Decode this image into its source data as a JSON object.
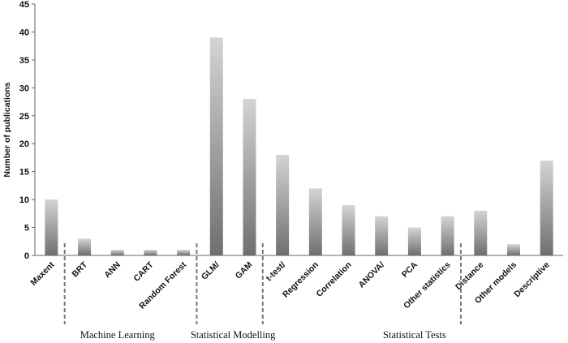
{
  "chart_data": {
    "type": "bar",
    "categories": [
      "Maxent",
      "BRT",
      "ANN",
      "CART",
      "Random Forest",
      "GLM/",
      "GAM",
      "t-test/",
      "Regression",
      "Correlation",
      "ANOVA/",
      "PCA",
      "Other statistics",
      "Distance",
      "Other models",
      "Descriptive"
    ],
    "values": [
      10,
      3,
      1,
      1,
      1,
      39,
      28,
      18,
      12,
      9,
      7,
      5,
      7,
      8,
      2,
      17
    ],
    "ylabel": "Number of publications",
    "xlabel": "",
    "ylim": [
      0,
      45
    ],
    "yticks": [
      0,
      5,
      10,
      15,
      20,
      25,
      30,
      35,
      40,
      45
    ],
    "grid": false,
    "legend": "none",
    "groups": [
      {
        "label": "Machine Learning",
        "start": 0,
        "end": 4
      },
      {
        "label": "Statistical Modelling",
        "start": 5,
        "end": 6
      },
      {
        "label": "Statistical Tests",
        "start": 7,
        "end": 15
      }
    ],
    "separators_after": [
      0,
      4,
      6,
      12
    ],
    "colors": {
      "bar_top": "#d4d4d4",
      "bar_bottom": "#6f6f6f",
      "axis": "#666666",
      "separator": "#777777"
    }
  }
}
